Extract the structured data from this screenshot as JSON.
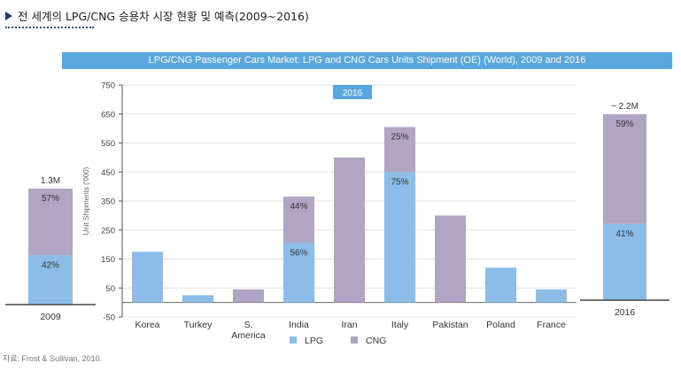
{
  "header": {
    "title": "전 세계의 LPG/CNG 승용차 시장 현황 및 예측(2009~2016)"
  },
  "source": "자료: Frost & Sullivan, 2010.",
  "colors": {
    "lpg": "#8bbde8",
    "cng": "#b0a6c4",
    "banner": "#5aa6df",
    "header_marker": "#1f3a7a"
  },
  "chart_data": [
    {
      "type": "bar",
      "title": "LPG/CNG Passenger Cars Market: LPG and CNG Cars Units Shipment (OE) (World), 2009 and 2016",
      "subtitle": "2016",
      "categories": [
        "Korea",
        "Turkey",
        "S. America",
        "India",
        "Iran",
        "Italy",
        "Pakistan",
        "Poland",
        "France"
      ],
      "category_lines": [
        [
          "Korea"
        ],
        [
          "Turkey"
        ],
        [
          "S.",
          "America"
        ],
        [
          "India"
        ],
        [
          "Iran"
        ],
        [
          "Italy"
        ],
        [
          "Pakistan"
        ],
        [
          "Poland"
        ],
        [
          "France"
        ]
      ],
      "series": [
        {
          "name": "LPG",
          "values": [
            175,
            25,
            0,
            205,
            0,
            450,
            0,
            120,
            45
          ]
        },
        {
          "name": "CNG",
          "values": [
            0,
            0,
            45,
            160,
            500,
            155,
            300,
            0,
            0
          ]
        }
      ],
      "data_labels": [
        {
          "category": "India",
          "series": "LPG",
          "text": "56%"
        },
        {
          "category": "India",
          "series": "CNG",
          "text": "44%"
        },
        {
          "category": "Italy",
          "series": "LPG",
          "text": "75%"
        },
        {
          "category": "Italy",
          "series": "CNG",
          "text": "25%"
        }
      ],
      "ylabel": "Unit Shipments ('000)",
      "ylim": [
        -50,
        750
      ],
      "yticks": [
        -50,
        50,
        150,
        250,
        350,
        450,
        550,
        650,
        750
      ],
      "grid": true,
      "legend": "bottom"
    },
    {
      "type": "bar",
      "categories": [
        "2009"
      ],
      "total_label": "1.3M",
      "shares": [
        {
          "series": "LPG",
          "share": 0.42,
          "label": "42%"
        },
        {
          "series": "CNG",
          "share": 0.57,
          "label": "57%"
        }
      ]
    },
    {
      "type": "bar",
      "categories": [
        "2016"
      ],
      "total_label": "~ 2.2M",
      "shares": [
        {
          "series": "LPG",
          "share": 0.41,
          "label": "41%"
        },
        {
          "series": "CNG",
          "share": 0.59,
          "label": "59%"
        }
      ]
    }
  ]
}
